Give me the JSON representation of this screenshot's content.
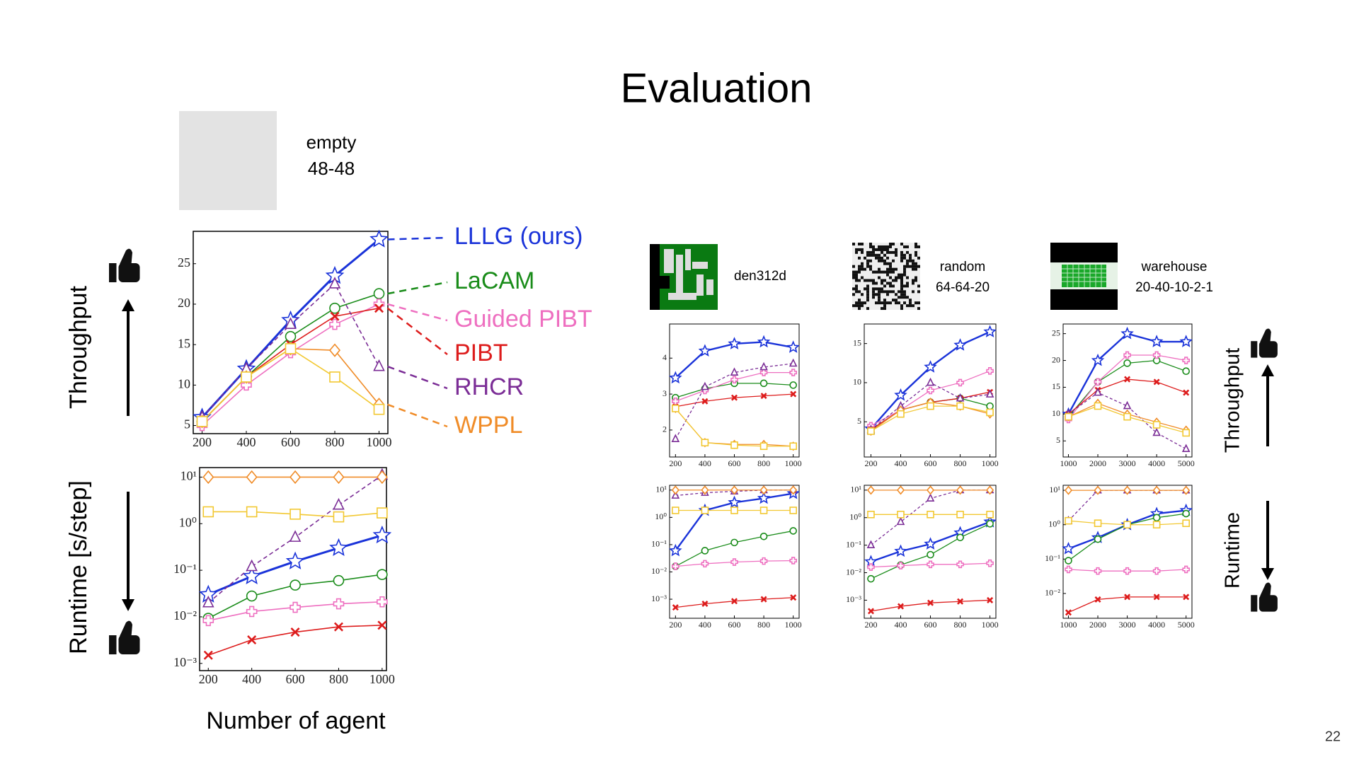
{
  "slide": {
    "title": "Evaluation",
    "page_number": 22
  },
  "chart_data": [
    {
      "type": "line",
      "title": [
        "empty",
        "48-48"
      ],
      "y_label": "Throughput",
      "legend": "right",
      "x": [
        200,
        400,
        600,
        800,
        1000
      ],
      "xlim": [
        160,
        1040
      ],
      "ylim": [
        4,
        29
      ],
      "xticks": [
        200,
        400,
        600,
        800,
        1000
      ],
      "yticks": [
        5,
        10,
        15,
        20,
        25
      ],
      "series": [
        {
          "name": "LLLG (ours)",
          "color": "#1a33d9",
          "marker": "star",
          "width": 3,
          "values": [
            6,
            12,
            18,
            23.5,
            28
          ]
        },
        {
          "name": "LaCAM",
          "color": "#1a8c1a",
          "marker": "circle",
          "values": [
            5.5,
            11,
            16,
            19.5,
            21.3
          ]
        },
        {
          "name": "Guided PIBT",
          "color": "#ee6fc0",
          "marker": "plus",
          "values": [
            5,
            10,
            14,
            17.5,
            20
          ]
        },
        {
          "name": "PIBT",
          "color": "#dd1c1c",
          "marker": "x",
          "values": [
            5.5,
            11,
            15,
            18.5,
            19.5
          ]
        },
        {
          "name": "RHCR",
          "color": "#7b2d96",
          "marker": "triangle",
          "dash": true,
          "values": [
            6,
            12,
            17.5,
            22.5,
            12.3
          ]
        },
        {
          "name": "WPPL",
          "color": "#f08c28",
          "marker": "diamond",
          "values": [
            5.5,
            11,
            14.5,
            14.3,
            7.6
          ]
        },
        {
          "color": "#f2c832",
          "marker": "square",
          "values": [
            5.5,
            11,
            14.5,
            11,
            7
          ]
        }
      ]
    },
    {
      "type": "line",
      "y_label": "Runtime [s/step]",
      "x_label": "Number of agent",
      "log_y": true,
      "x": [
        200,
        400,
        600,
        800,
        1000
      ],
      "xlim": [
        160,
        1020
      ],
      "ylim": [
        0.0007,
        16
      ],
      "xticks": [
        200,
        400,
        600,
        800,
        1000
      ],
      "yticks": [
        {
          "value": 0.001,
          "label": "10⁻³"
        },
        {
          "value": 0.01,
          "label": "10⁻²"
        },
        {
          "value": 0.1,
          "label": "10⁻¹"
        },
        {
          "value": 1,
          "label": "10⁰"
        },
        {
          "value": 10,
          "label": "10¹"
        }
      ],
      "series": [
        {
          "color": "#1a33d9",
          "marker": "star",
          "width": 3,
          "values": [
            0.03,
            0.074,
            0.155,
            0.3,
            0.56
          ]
        },
        {
          "color": "#1a8c1a",
          "marker": "circle",
          "values": [
            0.0093,
            0.028,
            0.048,
            0.06,
            0.081
          ]
        },
        {
          "color": "#ee6fc0",
          "marker": "plus",
          "values": [
            0.0083,
            0.013,
            0.016,
            0.019,
            0.021
          ]
        },
        {
          "color": "#dd1c1c",
          "marker": "x",
          "values": [
            0.0015,
            0.0032,
            0.0047,
            0.0061,
            0.0066
          ]
        },
        {
          "color": "#7b2d96",
          "marker": "triangle",
          "dash": true,
          "values": [
            0.02,
            0.12,
            0.51,
            2.5,
            11
          ]
        },
        {
          "color": "#f08c28",
          "marker": "diamond",
          "values": [
            10,
            10,
            10,
            10,
            10
          ]
        },
        {
          "color": "#f2c832",
          "marker": "square",
          "values": [
            1.8,
            1.8,
            1.6,
            1.4,
            1.7
          ]
        }
      ]
    },
    {
      "type": "line",
      "title": [
        "den312d"
      ],
      "x": [
        200,
        400,
        600,
        800,
        1000
      ],
      "xlim": [
        160,
        1040
      ],
      "ylim": [
        1.25,
        4.95
      ],
      "xticks": [
        200,
        400,
        600,
        800,
        1000
      ],
      "yticks": [
        2,
        3,
        4
      ],
      "series": [
        {
          "color": "#1a33d9",
          "marker": "star",
          "width": 3,
          "values": [
            3.45,
            4.2,
            4.4,
            4.45,
            4.3
          ]
        },
        {
          "color": "#1a8c1a",
          "marker": "circle",
          "values": [
            2.9,
            3.15,
            3.3,
            3.3,
            3.25
          ]
        },
        {
          "color": "#ee6fc0",
          "marker": "plus",
          "values": [
            2.8,
            3.1,
            3.4,
            3.6,
            3.6
          ]
        },
        {
          "color": "#dd1c1c",
          "marker": "x",
          "values": [
            2.65,
            2.8,
            2.9,
            2.95,
            3.0
          ]
        },
        {
          "color": "#7b2d96",
          "marker": "triangle",
          "dash": true,
          "values": [
            1.75,
            3.2,
            3.6,
            3.75,
            3.85
          ]
        },
        {
          "color": "#f08c28",
          "marker": "diamond",
          "values": [
            2.6,
            1.65,
            1.6,
            1.6,
            1.55
          ]
        },
        {
          "color": "#f2c832",
          "marker": "square",
          "values": [
            2.6,
            1.65,
            1.58,
            1.55,
            1.55
          ]
        }
      ]
    },
    {
      "type": "line",
      "log_y": true,
      "x": [
        200,
        400,
        600,
        800,
        1000
      ],
      "xlim": [
        160,
        1040
      ],
      "ylim": [
        0.0002,
        15
      ],
      "xticks": [
        200,
        400,
        600,
        800,
        1000
      ],
      "yticks": [
        {
          "value": 0.001,
          "label": "10⁻³"
        },
        {
          "value": 0.01,
          "label": "10⁻²"
        },
        {
          "value": 0.1,
          "label": "10⁻¹"
        },
        {
          "value": 1,
          "label": "10⁰"
        },
        {
          "value": 10,
          "label": "10¹"
        }
      ],
      "series": [
        {
          "color": "#1a33d9",
          "marker": "star",
          "width": 3,
          "values": [
            0.06,
            1.8,
            3.5,
            5,
            7.5
          ]
        },
        {
          "color": "#1a8c1a",
          "marker": "circle",
          "values": [
            0.016,
            0.06,
            0.12,
            0.2,
            0.32
          ]
        },
        {
          "color": "#ee6fc0",
          "marker": "plus",
          "values": [
            0.016,
            0.02,
            0.023,
            0.025,
            0.026
          ]
        },
        {
          "color": "#dd1c1c",
          "marker": "x",
          "values": [
            0.0005,
            0.00068,
            0.00085,
            0.001,
            0.00115
          ]
        },
        {
          "color": "#7b2d96",
          "marker": "triangle",
          "dash": true,
          "values": [
            6.3,
            8,
            9,
            10,
            10
          ]
        },
        {
          "color": "#f08c28",
          "marker": "diamond",
          "values": [
            10,
            10,
            10,
            10,
            10
          ]
        },
        {
          "color": "#f2c832",
          "marker": "square",
          "values": [
            1.8,
            1.8,
            1.8,
            1.8,
            1.8
          ]
        }
      ]
    },
    {
      "type": "line",
      "title": [
        "random",
        "64-64-20"
      ],
      "x": [
        200,
        400,
        600,
        800,
        1000
      ],
      "xlim": [
        155,
        1040
      ],
      "ylim": [
        0.5,
        17.5
      ],
      "xticks": [
        200,
        400,
        600,
        800,
        1000
      ],
      "yticks": [
        5,
        10,
        15
      ],
      "series": [
        {
          "color": "#1a33d9",
          "marker": "star",
          "width": 3,
          "values": [
            4.1,
            8.4,
            12,
            14.8,
            16.5
          ]
        },
        {
          "color": "#1a8c1a",
          "marker": "circle",
          "values": [
            4.0,
            6.5,
            7.5,
            8.0,
            7.0
          ]
        },
        {
          "color": "#ee6fc0",
          "marker": "plus",
          "values": [
            4.5,
            6.5,
            9,
            10,
            11.5
          ]
        },
        {
          "color": "#dd1c1c",
          "marker": "x",
          "values": [
            4,
            6.5,
            7.5,
            8,
            8.8
          ]
        },
        {
          "color": "#7b2d96",
          "marker": "triangle",
          "dash": true,
          "values": [
            4,
            7,
            10,
            8,
            8.5
          ]
        },
        {
          "color": "#f08c28",
          "marker": "diamond",
          "values": [
            3.8,
            6.5,
            7.5,
            7,
            6
          ]
        },
        {
          "color": "#f2c832",
          "marker": "square",
          "values": [
            3.8,
            6,
            7,
            7,
            6.2
          ]
        }
      ]
    },
    {
      "type": "line",
      "log_y": true,
      "x": [
        200,
        400,
        600,
        800,
        1000
      ],
      "xlim": [
        155,
        1040
      ],
      "ylim": [
        0.00022,
        15
      ],
      "xticks": [
        200,
        400,
        600,
        800,
        1000
      ],
      "yticks": [
        {
          "value": 0.001,
          "label": "10⁻³"
        },
        {
          "value": 0.01,
          "label": "10⁻²"
        },
        {
          "value": 0.1,
          "label": "10⁻¹"
        },
        {
          "value": 1,
          "label": "10⁰"
        },
        {
          "value": 10,
          "label": "10¹"
        }
      ],
      "series": [
        {
          "color": "#1a33d9",
          "marker": "star",
          "width": 3,
          "values": [
            0.025,
            0.06,
            0.11,
            0.28,
            0.7
          ]
        },
        {
          "color": "#1a8c1a",
          "marker": "circle",
          "values": [
            0.006,
            0.019,
            0.045,
            0.19,
            0.6
          ]
        },
        {
          "color": "#ee6fc0",
          "marker": "plus",
          "values": [
            0.016,
            0.018,
            0.02,
            0.02,
            0.022
          ]
        },
        {
          "color": "#dd1c1c",
          "marker": "x",
          "values": [
            0.0004,
            0.0006,
            0.0008,
            0.0009,
            0.001
          ]
        },
        {
          "color": "#7b2d96",
          "marker": "triangle",
          "dash": true,
          "values": [
            0.1,
            0.7,
            5,
            10,
            10
          ]
        },
        {
          "color": "#f08c28",
          "marker": "diamond",
          "values": [
            10,
            10,
            10,
            10,
            10
          ]
        },
        {
          "color": "#f2c832",
          "marker": "square",
          "values": [
            1.3,
            1.3,
            1.3,
            1.3,
            1.3
          ]
        }
      ]
    },
    {
      "type": "line",
      "title": [
        "warehouse",
        "20-40-10-2-1"
      ],
      "y_label": "Throughput",
      "x": [
        1000,
        2000,
        3000,
        4000,
        5000
      ],
      "xlim": [
        820,
        5200
      ],
      "ylim": [
        2,
        26.8
      ],
      "xticks": [
        1000,
        2000,
        3000,
        4000,
        5000
      ],
      "yticks": [
        5,
        10,
        15,
        20,
        25
      ],
      "series": [
        {
          "color": "#1a33d9",
          "marker": "star",
          "width": 3,
          "values": [
            10,
            20,
            25,
            23.5,
            23.5
          ]
        },
        {
          "color": "#1a8c1a",
          "marker": "circle",
          "values": [
            9.5,
            16,
            19.5,
            20,
            18
          ]
        },
        {
          "color": "#ee6fc0",
          "marker": "plus",
          "values": [
            9,
            16,
            21,
            21,
            20
          ]
        },
        {
          "color": "#dd1c1c",
          "marker": "x",
          "values": [
            10,
            14.5,
            16.5,
            16,
            14
          ]
        },
        {
          "color": "#7b2d96",
          "marker": "triangle",
          "dash": true,
          "values": [
            10,
            14,
            11.5,
            6.5,
            3.5
          ]
        },
        {
          "color": "#f08c28",
          "marker": "diamond",
          "values": [
            9.5,
            12,
            10,
            8.5,
            7
          ]
        },
        {
          "color": "#f2c832",
          "marker": "square",
          "values": [
            9.5,
            11.5,
            9.5,
            8,
            6.5
          ]
        }
      ]
    },
    {
      "type": "line",
      "y_label": "Runtime",
      "log_y": true,
      "x": [
        1000,
        2000,
        3000,
        4000,
        5000
      ],
      "xlim": [
        820,
        5200
      ],
      "ylim": [
        0.0019,
        14
      ],
      "xticks": [
        1000,
        2000,
        3000,
        4000,
        5000
      ],
      "yticks": [
        {
          "value": 0.01,
          "label": "10⁻²"
        },
        {
          "value": 0.1,
          "label": "10⁻¹"
        },
        {
          "value": 1,
          "label": "10⁰"
        },
        {
          "value": 10,
          "label": "10¹"
        }
      ],
      "series": [
        {
          "color": "#1a33d9",
          "marker": "star",
          "width": 3,
          "values": [
            0.2,
            0.42,
            1,
            2.1,
            2.6
          ]
        },
        {
          "color": "#1a8c1a",
          "marker": "circle",
          "values": [
            0.09,
            0.38,
            1.0,
            1.6,
            2.1
          ]
        },
        {
          "color": "#ee6fc0",
          "marker": "plus",
          "values": [
            0.05,
            0.045,
            0.045,
            0.045,
            0.05
          ]
        },
        {
          "color": "#dd1c1c",
          "marker": "x",
          "values": [
            0.0028,
            0.0067,
            0.0079,
            0.0079,
            0.0079
          ]
        },
        {
          "color": "#7b2d96",
          "marker": "triangle",
          "dash": true,
          "values": [
            1.3,
            10,
            10,
            10,
            10
          ]
        },
        {
          "color": "#f08c28",
          "marker": "diamond",
          "values": [
            10,
            10,
            10,
            10,
            10
          ]
        },
        {
          "color": "#f2c832",
          "marker": "square",
          "values": [
            1.3,
            1.1,
            1.0,
            1.0,
            1.1
          ]
        }
      ]
    }
  ]
}
